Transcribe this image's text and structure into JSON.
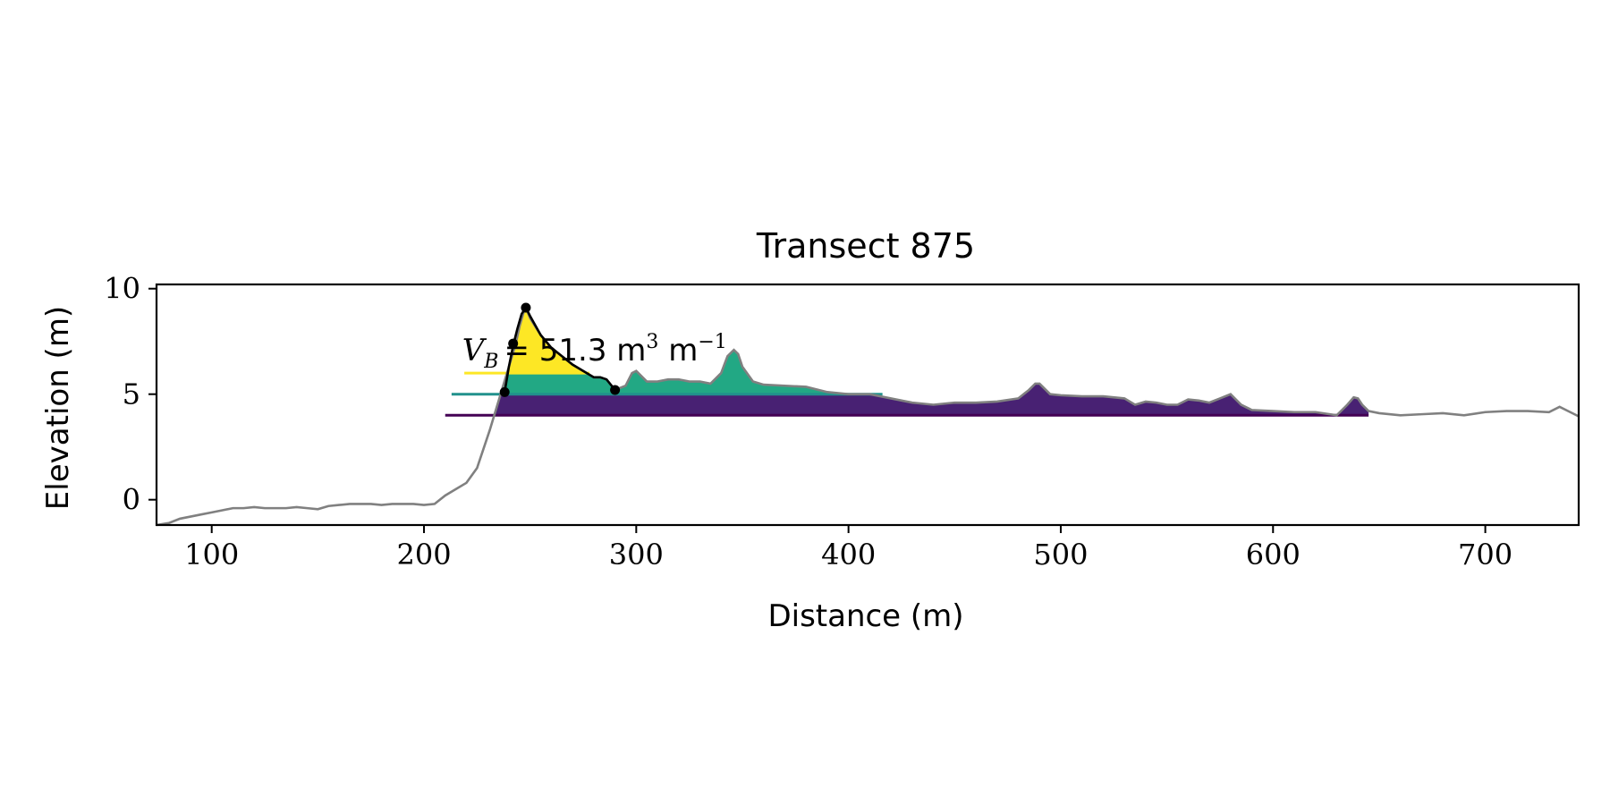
{
  "chart_data": {
    "type": "area",
    "title": "Transect 875",
    "xlabel": "Distance (m)",
    "ylabel": "Elevation (m)",
    "xlim": [
      74,
      744
    ],
    "ylim": [
      -1.2,
      10.2
    ],
    "xticks": [
      100,
      200,
      300,
      400,
      500,
      600,
      700
    ],
    "yticks": [
      0,
      5,
      10
    ],
    "xtick_labels": [
      "100",
      "200",
      "300",
      "400",
      "500",
      "600",
      "700"
    ],
    "ytick_labels": [
      "0",
      "5",
      "10"
    ],
    "grid": false,
    "profile_color": "#808080",
    "profile": {
      "x": [
        74,
        80,
        85,
        90,
        95,
        100,
        105,
        110,
        115,
        120,
        125,
        130,
        135,
        140,
        145,
        150,
        155,
        160,
        165,
        170,
        175,
        180,
        185,
        190,
        195,
        200,
        205,
        210,
        215,
        220,
        225,
        228,
        231,
        234,
        237,
        240,
        243,
        245,
        247,
        248,
        250,
        255,
        260,
        265,
        270,
        275,
        280,
        283,
        286,
        290,
        295,
        298,
        300,
        305,
        310,
        315,
        320,
        325,
        330,
        335,
        340,
        343,
        346,
        348,
        350,
        355,
        360,
        370,
        380,
        390,
        400,
        410,
        420,
        430,
        440,
        450,
        460,
        470,
        480,
        485,
        488,
        490,
        495,
        500,
        510,
        520,
        530,
        535,
        540,
        545,
        550,
        555,
        560,
        565,
        570,
        575,
        580,
        585,
        590,
        600,
        610,
        620,
        630,
        635,
        638,
        640,
        642,
        645,
        650,
        660,
        670,
        680,
        690,
        700,
        710,
        720,
        730,
        735,
        740,
        744
      ],
      "y": [
        -1.2,
        -1.1,
        -0.9,
        -0.8,
        -0.7,
        -0.6,
        -0.5,
        -0.4,
        -0.4,
        -0.35,
        -0.4,
        -0.4,
        -0.4,
        -0.35,
        -0.4,
        -0.45,
        -0.3,
        -0.25,
        -0.2,
        -0.2,
        -0.2,
        -0.25,
        -0.2,
        -0.2,
        -0.2,
        -0.25,
        -0.2,
        0.2,
        0.5,
        0.8,
        1.5,
        2.4,
        3.3,
        4.3,
        5.3,
        6.3,
        7.3,
        8.2,
        8.9,
        9.1,
        8.6,
        7.8,
        7.2,
        6.8,
        6.4,
        6.1,
        5.8,
        5.8,
        5.7,
        5.2,
        5.4,
        6.0,
        6.1,
        5.6,
        5.6,
        5.7,
        5.7,
        5.6,
        5.6,
        5.5,
        6.0,
        6.8,
        7.1,
        6.9,
        6.3,
        5.6,
        5.45,
        5.4,
        5.35,
        5.1,
        5.0,
        5.0,
        4.8,
        4.6,
        4.5,
        4.6,
        4.6,
        4.65,
        4.8,
        5.2,
        5.5,
        5.5,
        5.0,
        4.95,
        4.9,
        4.9,
        4.8,
        4.5,
        4.65,
        4.6,
        4.5,
        4.5,
        4.75,
        4.7,
        4.6,
        4.8,
        5.0,
        4.5,
        4.25,
        4.2,
        4.15,
        4.15,
        4.0,
        4.5,
        4.85,
        4.8,
        4.5,
        4.2,
        4.1,
        4.0,
        4.05,
        4.1,
        4.0,
        4.15,
        4.2,
        4.2,
        4.15,
        4.4,
        4.15,
        3.95
      ]
    },
    "fills": [
      {
        "level": 4.0,
        "x_start": 210,
        "x_end": 645,
        "color": "#440154",
        "fill_color": "#482173"
      },
      {
        "level": 5.0,
        "x_start": 213,
        "x_end": 416,
        "color": "#21918c",
        "fill_color": "#22a884"
      },
      {
        "level": 6.0,
        "x_start": 219,
        "x_end": 278,
        "color": "#fde725",
        "fill_color": "#fde725"
      }
    ],
    "dune_outline": {
      "x": [
        238,
        240,
        242,
        244,
        246,
        248,
        250,
        255,
        260,
        265,
        270,
        275,
        280,
        283,
        286,
        290
      ],
      "y": [
        5.1,
        6.3,
        7.3,
        8.1,
        8.8,
        9.1,
        8.7,
        7.8,
        7.2,
        6.8,
        6.4,
        6.1,
        5.8,
        5.8,
        5.7,
        5.2
      ],
      "color": "#000000"
    },
    "markers": {
      "x": [
        238,
        242,
        248,
        290
      ],
      "y": [
        5.1,
        7.4,
        9.1,
        5.2
      ],
      "color": "#000000"
    },
    "annotation": {
      "symbol": "V",
      "subscript": "B",
      "text": "= 51.3 m",
      "unit_exp1": "3",
      "unit_mid": " m",
      "unit_exp2": "−1",
      "x": 218,
      "y": 6.6
    }
  }
}
